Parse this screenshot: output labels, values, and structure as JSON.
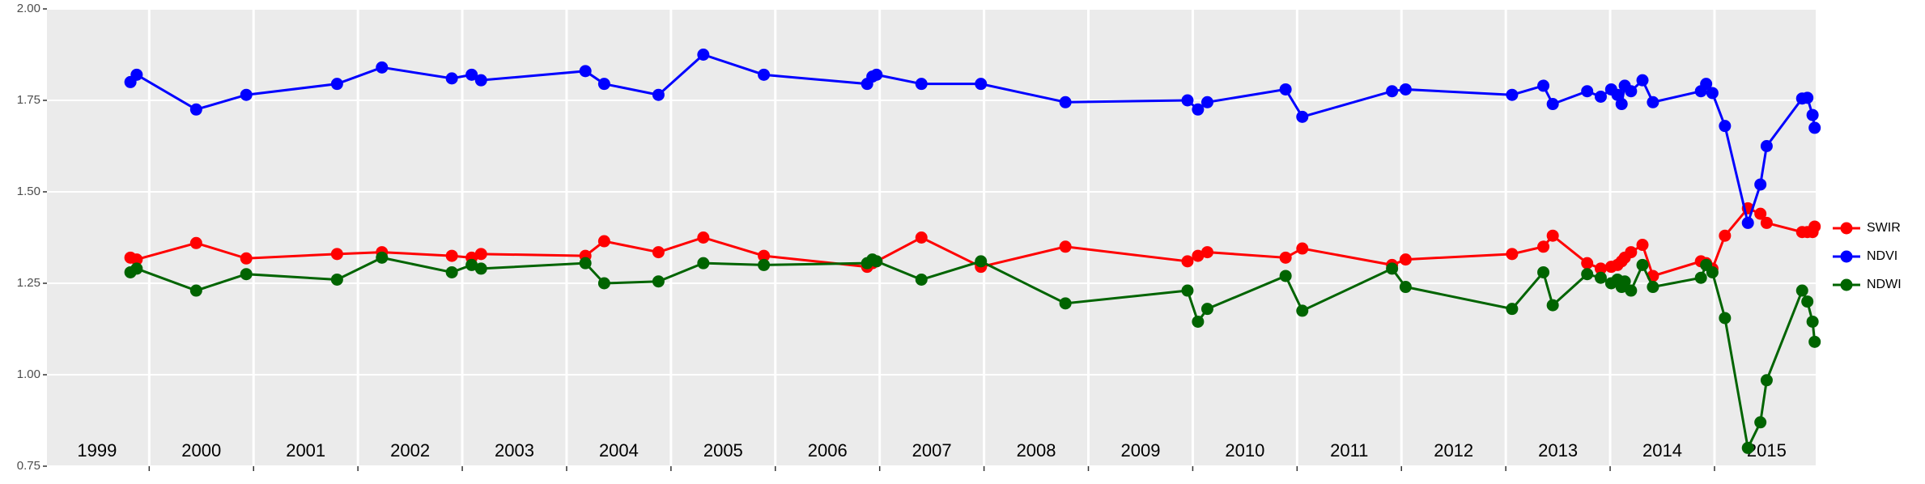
{
  "chart_data": {
    "type": "line",
    "x": [
      1999.82,
      1999.88,
      2000.45,
      2000.93,
      2001.8,
      2002.23,
      2002.9,
      2003.09,
      2003.18,
      2004.18,
      2004.36,
      2004.88,
      2005.31,
      2005.89,
      2006.88,
      2006.93,
      2006.97,
      2007.4,
      2007.97,
      2008.78,
      2009.95,
      2010.05,
      2010.14,
      2010.89,
      2011.05,
      2011.91,
      2012.04,
      2013.06,
      2013.36,
      2013.45,
      2013.78,
      2013.91,
      2014.01,
      2014.07,
      2014.11,
      2014.14,
      2014.2,
      2014.31,
      2014.41,
      2014.87,
      2014.92,
      2014.98,
      2015.1,
      2015.32,
      2015.44,
      2015.5,
      2015.84,
      2015.89,
      2015.94,
      2015.96
    ],
    "series": [
      {
        "name": "SWIR",
        "color": "#ff0000",
        "values": [
          1.32,
          1.315,
          1.36,
          1.318,
          1.33,
          1.335,
          1.325,
          1.32,
          1.33,
          1.325,
          1.365,
          1.335,
          1.375,
          1.325,
          1.295,
          1.305,
          1.31,
          1.375,
          1.295,
          1.35,
          1.31,
          1.325,
          1.335,
          1.32,
          1.345,
          1.3,
          1.315,
          1.33,
          1.35,
          1.38,
          1.305,
          1.29,
          1.295,
          1.3,
          1.31,
          1.32,
          1.335,
          1.355,
          1.27,
          1.31,
          1.305,
          1.29,
          1.38,
          1.455,
          1.44,
          1.415,
          1.39,
          1.39,
          1.39,
          1.405
        ]
      },
      {
        "name": "NDVI",
        "color": "#0000ff",
        "values": [
          1.8,
          1.82,
          1.725,
          1.765,
          1.795,
          1.84,
          1.81,
          1.82,
          1.805,
          1.83,
          1.795,
          1.765,
          1.875,
          1.82,
          1.795,
          1.815,
          1.82,
          1.795,
          1.795,
          1.745,
          1.75,
          1.725,
          1.745,
          1.78,
          1.705,
          1.775,
          1.78,
          1.765,
          1.79,
          1.74,
          1.775,
          1.76,
          1.78,
          1.765,
          1.74,
          1.79,
          1.775,
          1.805,
          1.745,
          1.775,
          1.795,
          1.77,
          1.68,
          1.415,
          1.52,
          1.625,
          1.755,
          1.757,
          1.71,
          1.675
        ]
      },
      {
        "name": "NDWI",
        "color": "#006400",
        "values": [
          1.28,
          1.29,
          1.23,
          1.275,
          1.26,
          1.32,
          1.28,
          1.3,
          1.29,
          1.305,
          1.25,
          1.255,
          1.305,
          1.3,
          1.305,
          1.315,
          1.31,
          1.26,
          1.31,
          1.195,
          1.23,
          1.145,
          1.18,
          1.27,
          1.175,
          1.29,
          1.24,
          1.18,
          1.28,
          1.19,
          1.275,
          1.265,
          1.25,
          1.26,
          1.24,
          1.255,
          1.23,
          1.3,
          1.24,
          1.265,
          1.3,
          1.28,
          1.155,
          0.8,
          0.87,
          0.985,
          1.23,
          1.2,
          1.145,
          1.09
        ]
      }
    ],
    "xlim": [
      1999.02,
      2015.97
    ],
    "xticks": [
      {
        "value": 1999.5,
        "label": "1999"
      },
      {
        "value": 2000.5,
        "label": "2000"
      },
      {
        "value": 2001.5,
        "label": "2001"
      },
      {
        "value": 2002.5,
        "label": "2002"
      },
      {
        "value": 2003.5,
        "label": "2003"
      },
      {
        "value": 2004.5,
        "label": "2004"
      },
      {
        "value": 2005.5,
        "label": "2005"
      },
      {
        "value": 2006.5,
        "label": "2006"
      },
      {
        "value": 2007.5,
        "label": "2007"
      },
      {
        "value": 2008.5,
        "label": "2008"
      },
      {
        "value": 2009.5,
        "label": "2009"
      },
      {
        "value": 2010.5,
        "label": "2010"
      },
      {
        "value": 2011.5,
        "label": "2011"
      },
      {
        "value": 2012.5,
        "label": "2012"
      },
      {
        "value": 2013.5,
        "label": "2013"
      },
      {
        "value": 2014.5,
        "label": "2014"
      },
      {
        "value": 2015.5,
        "label": "2015"
      }
    ],
    "xgrid": [
      2000,
      2001,
      2002,
      2003,
      2004,
      2005,
      2006,
      2007,
      2008,
      2009,
      2010,
      2011,
      2012,
      2013,
      2014,
      2015
    ],
    "ylim": [
      0.75,
      2
    ],
    "yticks": [
      0.75,
      {
        "value": 1,
        "label": "1.00"
      },
      1.25,
      {
        "value": 1.5,
        "label": "1.50"
      },
      1.75,
      {
        "value": 2,
        "label": "2.00"
      }
    ],
    "grid": true
  }
}
